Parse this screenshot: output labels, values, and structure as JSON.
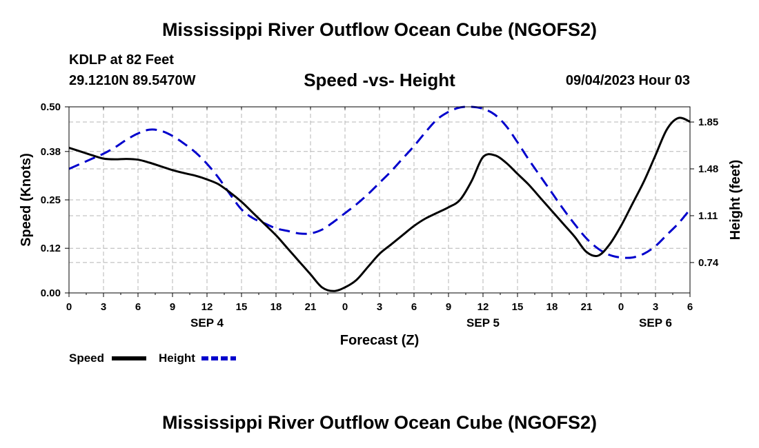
{
  "title": "Mississippi River Outflow Ocean Cube (NGOFS2)",
  "footer_title": "Mississippi River Outflow Ocean Cube (NGOFS2)",
  "station": "KDLP at 82 Feet",
  "coords": "29.1210N  89.5470W",
  "datetime": "09/04/2023 Hour 03",
  "colors": {
    "speed": "#000000",
    "height": "#0000cc",
    "grid": "#b4b4b4"
  },
  "chart_data": {
    "type": "line",
    "title": "Speed -vs- Height",
    "xlabel": "Forecast (Z)",
    "ylabel": "Speed (Knots)",
    "y2label": "Height (feet)",
    "x_unit": "hours since 2023-09-04 00Z",
    "xlim": [
      0,
      54
    ],
    "ylim": [
      0,
      0.5
    ],
    "y2lim": [
      0.5,
      1.97
    ],
    "x_ticks": [
      0,
      3,
      6,
      9,
      12,
      15,
      18,
      21,
      24,
      27,
      30,
      33,
      36,
      39,
      42,
      45,
      48,
      51,
      54
    ],
    "x_tick_labels": [
      "0",
      "3",
      "6",
      "9",
      "12",
      "15",
      "18",
      "21",
      "0",
      "3",
      "6",
      "9",
      "12",
      "15",
      "18",
      "21",
      "0",
      "3",
      "6"
    ],
    "date_labels": [
      {
        "x": 12,
        "label": "SEP 4"
      },
      {
        "x": 36,
        "label": "SEP 5"
      },
      {
        "x": 51,
        "label": "SEP 6"
      }
    ],
    "y_ticks": [
      0.0,
      0.12,
      0.25,
      0.38,
      0.5
    ],
    "y_tick_labels": [
      "0.00",
      "0.12",
      "0.25",
      "0.38",
      "0.50"
    ],
    "y2_ticks": [
      0.74,
      1.11,
      1.48,
      1.85
    ],
    "y2_tick_labels": [
      "0.74",
      "1.11",
      "1.48",
      "1.85"
    ],
    "legend": {
      "position": "bottom-left"
    },
    "series": [
      {
        "name": "Speed",
        "axis": "left",
        "style": "solid",
        "x": [
          0,
          1,
          2,
          3,
          4,
          5,
          6,
          7,
          8,
          9,
          10,
          11,
          12,
          13,
          14,
          15,
          16,
          17,
          18,
          19,
          20,
          21,
          22,
          23,
          24,
          25,
          26,
          27,
          28,
          29,
          30,
          31,
          32,
          33,
          34,
          35,
          36,
          37,
          38,
          39,
          40,
          41,
          42,
          43,
          44,
          45,
          46,
          47,
          48,
          49,
          50,
          51,
          52,
          53,
          54
        ],
        "values": [
          0.39,
          0.38,
          0.37,
          0.361,
          0.359,
          0.36,
          0.358,
          0.35,
          0.34,
          0.33,
          0.322,
          0.315,
          0.305,
          0.292,
          0.27,
          0.245,
          0.215,
          0.185,
          0.155,
          0.12,
          0.085,
          0.05,
          0.015,
          0.005,
          0.015,
          0.035,
          0.07,
          0.105,
          0.13,
          0.155,
          0.18,
          0.2,
          0.215,
          0.23,
          0.25,
          0.3,
          0.365,
          0.37,
          0.35,
          0.32,
          0.29,
          0.255,
          0.22,
          0.185,
          0.15,
          0.11,
          0.1,
          0.13,
          0.18,
          0.24,
          0.3,
          0.37,
          0.44,
          0.47,
          0.46
        ]
      },
      {
        "name": "Height",
        "axis": "right",
        "style": "dashed",
        "x": [
          0,
          1,
          2,
          3,
          4,
          5,
          6,
          7,
          8,
          9,
          10,
          11,
          12,
          13,
          14,
          15,
          16,
          17,
          18,
          19,
          20,
          21,
          22,
          23,
          24,
          25,
          26,
          27,
          28,
          29,
          30,
          31,
          32,
          33,
          34,
          35,
          36,
          37,
          38,
          39,
          40,
          41,
          42,
          43,
          44,
          45,
          46,
          47,
          48,
          49,
          50,
          51,
          52,
          53,
          54
        ],
        "values": [
          1.48,
          1.52,
          1.56,
          1.6,
          1.65,
          1.71,
          1.76,
          1.79,
          1.78,
          1.74,
          1.68,
          1.61,
          1.52,
          1.41,
          1.28,
          1.16,
          1.09,
          1.05,
          1.01,
          0.99,
          0.97,
          0.97,
          1.0,
          1.06,
          1.13,
          1.2,
          1.28,
          1.37,
          1.46,
          1.56,
          1.66,
          1.77,
          1.87,
          1.93,
          1.965,
          1.97,
          1.955,
          1.91,
          1.82,
          1.69,
          1.55,
          1.42,
          1.29,
          1.16,
          1.04,
          0.93,
          0.85,
          0.8,
          0.78,
          0.78,
          0.81,
          0.87,
          0.96,
          1.05,
          1.16
        ]
      }
    ]
  }
}
